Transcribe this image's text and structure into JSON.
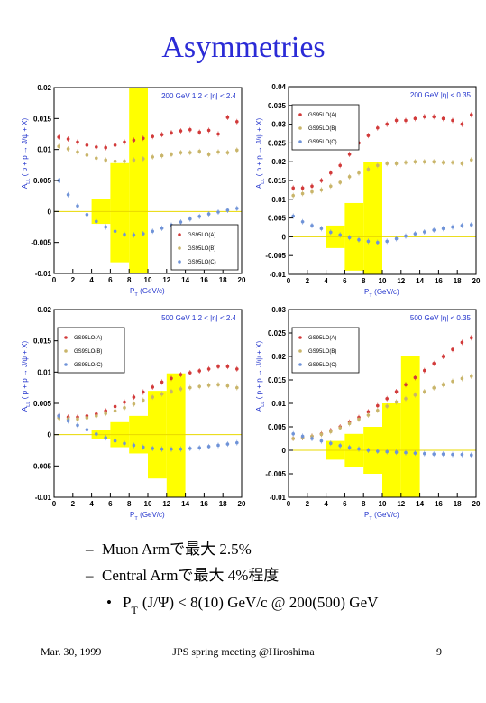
{
  "slide": {
    "title": "Asymmetries",
    "bullets": [
      {
        "marker": "–",
        "parts": [
          "Muon Armで最大 2.5%"
        ]
      },
      {
        "marker": "–",
        "parts": [
          "Central Armで最大 4%程度"
        ]
      },
      {
        "marker": "•",
        "parts": [
          "P",
          "T",
          "(J/Ψ) < 8(10) GeV/c @ 200(500) GeV"
        ]
      }
    ],
    "footer": {
      "date": "Mar. 30, 1999",
      "meeting": "JPS spring meeting @Hiroshima",
      "page": "9"
    }
  },
  "chart_data": [
    {
      "type": "scatter",
      "annotation": "200 GeV   1.2 < |η| < 2.4",
      "legend": "lower right",
      "xlabel_parts": [
        "P",
        "T",
        "(GeV/c)"
      ],
      "ylabel_parts": [
        "A",
        "LL",
        "( p + p → J/ψ + X)"
      ],
      "xlim": [
        0,
        20
      ],
      "xticks": [
        0,
        2,
        4,
        6,
        8,
        10,
        12,
        14,
        16,
        18,
        20
      ],
      "ylim": [
        -0.01,
        0.02
      ],
      "yticks": [
        -0.01,
        -0.005,
        0,
        0.005,
        0.01,
        0.015,
        0.02
      ],
      "x": [
        0.5,
        1.5,
        2.5,
        3.5,
        4.5,
        5.5,
        6.5,
        7.5,
        8.5,
        9.5,
        10.5,
        11.5,
        12.5,
        13.5,
        14.5,
        15.5,
        16.5,
        17.5,
        18.5,
        19.5
      ],
      "series": [
        {
          "name": "GS95LO(A)",
          "color": "#d23a3a",
          "values": [
            0.012,
            0.0117,
            0.0112,
            0.0107,
            0.0104,
            0.0103,
            0.0107,
            0.0112,
            0.0115,
            0.0118,
            0.0121,
            0.0124,
            0.0127,
            0.013,
            0.0132,
            0.0128,
            0.0131,
            0.0125,
            0.0152,
            0.0145
          ]
        },
        {
          "name": "GS95LO(B)",
          "color": "#c9b56a",
          "values": [
            0.0105,
            0.0101,
            0.0096,
            0.0091,
            0.0086,
            0.0083,
            0.0081,
            0.0081,
            0.0083,
            0.0085,
            0.0088,
            0.009,
            0.0092,
            0.0095,
            0.0095,
            0.0097,
            0.0092,
            0.0096,
            0.0095,
            0.0099
          ]
        },
        {
          "name": "GS95LO(C)",
          "color": "#6f93d8",
          "values": [
            0.005,
            0.0027,
            0.0009,
            -0.0005,
            -0.0016,
            -0.0025,
            -0.0032,
            -0.0037,
            -0.0038,
            -0.0036,
            -0.0032,
            -0.0027,
            -0.0022,
            -0.0017,
            -0.0012,
            -0.0008,
            -0.0004,
            -0.0001,
            0.0002,
            0.0005
          ]
        }
      ],
      "boxes": [
        {
          "x": [
            4,
            6
          ],
          "low": -0.002,
          "high": 0.002
        },
        {
          "x": [
            6,
            8
          ],
          "low": -0.0082,
          "high": 0.0078
        },
        {
          "x": [
            8,
            10
          ],
          "low": -0.01,
          "high": 0.02
        }
      ]
    },
    {
      "type": "scatter",
      "annotation": "200 GeV   |η| < 0.35",
      "legend": "upper left",
      "xlabel_parts": [
        "P",
        "T",
        "(GeV/c)"
      ],
      "ylabel_parts": [
        "A",
        "LL",
        "( p + p → J/ψ + X)"
      ],
      "xlim": [
        0,
        20
      ],
      "xticks": [
        0,
        2,
        4,
        6,
        8,
        10,
        12,
        14,
        16,
        18,
        20
      ],
      "ylim": [
        -0.01,
        0.04
      ],
      "yticks": [
        -0.01,
        -0.005,
        0,
        0.005,
        0.01,
        0.015,
        0.02,
        0.025,
        0.03,
        0.035,
        0.04
      ],
      "x": [
        0.5,
        1.5,
        2.5,
        3.5,
        4.5,
        5.5,
        6.5,
        7.5,
        8.5,
        9.5,
        10.5,
        11.5,
        12.5,
        13.5,
        14.5,
        15.5,
        16.5,
        17.5,
        18.5,
        19.5
      ],
      "series": [
        {
          "name": "GS95LO(A)",
          "color": "#d23a3a",
          "values": [
            0.013,
            0.013,
            0.0135,
            0.015,
            0.017,
            0.019,
            0.022,
            0.025,
            0.027,
            0.029,
            0.03,
            0.031,
            0.031,
            0.0315,
            0.032,
            0.032,
            0.0315,
            0.031,
            0.03,
            0.0325
          ]
        },
        {
          "name": "GS95LO(B)",
          "color": "#c9b56a",
          "values": [
            0.011,
            0.0115,
            0.012,
            0.0125,
            0.0135,
            0.0145,
            0.016,
            0.017,
            0.018,
            0.019,
            0.0195,
            0.0195,
            0.0198,
            0.02,
            0.02,
            0.02,
            0.0198,
            0.0198,
            0.0195,
            0.0205
          ]
        },
        {
          "name": "GS95LO(C)",
          "color": "#6f93d8",
          "values": [
            0.0055,
            0.004,
            0.003,
            0.0022,
            0.0012,
            0.0005,
            -0.0002,
            -0.0008,
            -0.0012,
            -0.0015,
            -0.0012,
            -0.0005,
            0.0002,
            0.0008,
            0.0013,
            0.0018,
            0.0022,
            0.0026,
            0.003,
            0.0032
          ]
        }
      ],
      "boxes": [
        {
          "x": [
            4,
            6
          ],
          "low": -0.003,
          "high": 0.003
        },
        {
          "x": [
            6,
            8
          ],
          "low": -0.009,
          "high": 0.009
        },
        {
          "x": [
            8,
            10
          ],
          "low": -0.01,
          "high": 0.02
        }
      ]
    },
    {
      "type": "scatter",
      "annotation": "500 GeV   1.2 < |η| < 2.4",
      "legend": "upper left",
      "xlabel_parts": [
        "P",
        "T",
        "(GeV/c)"
      ],
      "ylabel_parts": [
        "A",
        "LL",
        "( p + p → J/ψ + X)"
      ],
      "xlim": [
        0,
        20
      ],
      "xticks": [
        0,
        2,
        4,
        6,
        8,
        10,
        12,
        14,
        16,
        18,
        20
      ],
      "ylim": [
        -0.01,
        0.02
      ],
      "yticks": [
        -0.01,
        -0.005,
        0,
        0.005,
        0.01,
        0.015,
        0.02
      ],
      "x": [
        0.5,
        1.5,
        2.5,
        3.5,
        4.5,
        5.5,
        6.5,
        7.5,
        8.5,
        9.5,
        10.5,
        11.5,
        12.5,
        13.5,
        14.5,
        15.5,
        16.5,
        17.5,
        18.5,
        19.5
      ],
      "series": [
        {
          "name": "GS95LO(A)",
          "color": "#d23a3a",
          "values": [
            0.003,
            0.0028,
            0.0028,
            0.003,
            0.0033,
            0.0038,
            0.0045,
            0.0052,
            0.006,
            0.0068,
            0.0076,
            0.0084,
            0.009,
            0.0096,
            0.0099,
            0.0102,
            0.0105,
            0.0109,
            0.0109,
            0.0105
          ]
        },
        {
          "name": "GS95LO(B)",
          "color": "#c9b56a",
          "values": [
            0.0027,
            0.0025,
            0.0025,
            0.0027,
            0.003,
            0.0034,
            0.0038,
            0.0043,
            0.0049,
            0.0055,
            0.006,
            0.0065,
            0.0069,
            0.0073,
            0.0075,
            0.0077,
            0.0079,
            0.008,
            0.0078,
            0.0075
          ]
        },
        {
          "name": "GS95LO(C)",
          "color": "#6f93d8",
          "values": [
            0.003,
            0.0022,
            0.0015,
            0.0008,
            0.0001,
            -0.0005,
            -0.001,
            -0.0014,
            -0.0017,
            -0.002,
            -0.0022,
            -0.0023,
            -0.0023,
            -0.0023,
            -0.0022,
            -0.0021,
            -0.0019,
            -0.0017,
            -0.0015,
            -0.0013
          ]
        }
      ],
      "boxes": [
        {
          "x": [
            4,
            6
          ],
          "low": -0.0007,
          "high": 0.0007
        },
        {
          "x": [
            6,
            8
          ],
          "low": -0.002,
          "high": 0.002
        },
        {
          "x": [
            8,
            10
          ],
          "low": -0.003,
          "high": 0.003
        },
        {
          "x": [
            10,
            12
          ],
          "low": -0.007,
          "high": 0.007
        },
        {
          "x": [
            12,
            14
          ],
          "low": -0.01,
          "high": 0.0098
        }
      ]
    },
    {
      "type": "scatter",
      "annotation": "500 GeV   |η| < 0.35",
      "legend": "upper left",
      "xlabel_parts": [
        "P",
        "T",
        "(GeV/c)"
      ],
      "ylabel_parts": [
        "A",
        "LL",
        "( p + p → J/ψ + X)"
      ],
      "xlim": [
        0,
        20
      ],
      "xticks": [
        0,
        2,
        4,
        6,
        8,
        10,
        12,
        14,
        16,
        18,
        20
      ],
      "ylim": [
        -0.01,
        0.03
      ],
      "yticks": [
        -0.01,
        -0.005,
        0,
        0.005,
        0.01,
        0.015,
        0.02,
        0.025,
        0.03
      ],
      "x": [
        0.5,
        1.5,
        2.5,
        3.5,
        4.5,
        5.5,
        6.5,
        7.5,
        8.5,
        9.5,
        10.5,
        11.5,
        12.5,
        13.5,
        14.5,
        15.5,
        16.5,
        17.5,
        18.5,
        19.5
      ],
      "series": [
        {
          "name": "GS95LO(A)",
          "color": "#d23a3a",
          "values": [
            0.0025,
            0.0027,
            0.003,
            0.0035,
            0.0042,
            0.005,
            0.006,
            0.007,
            0.0082,
            0.0095,
            0.011,
            0.0125,
            0.014,
            0.0155,
            0.017,
            0.0185,
            0.02,
            0.0215,
            0.023,
            0.024
          ]
        },
        {
          "name": "GS95LO(B)",
          "color": "#c9b56a",
          "values": [
            0.0025,
            0.0027,
            0.003,
            0.0034,
            0.004,
            0.0048,
            0.0057,
            0.0066,
            0.0075,
            0.0085,
            0.0094,
            0.0103,
            0.011,
            0.0118,
            0.0125,
            0.0133,
            0.014,
            0.0147,
            0.0153,
            0.0158
          ]
        },
        {
          "name": "GS95LO(C)",
          "color": "#6f93d8",
          "values": [
            0.0035,
            0.003,
            0.0025,
            0.002,
            0.0015,
            0.001,
            0.0006,
            0.0003,
            0,
            -0.0002,
            -0.0003,
            -0.0004,
            -0.0005,
            -0.0006,
            -0.0007,
            -0.0008,
            -0.0008,
            -0.0009,
            -0.0009,
            -0.001
          ]
        }
      ],
      "boxes": [
        {
          "x": [
            4,
            6
          ],
          "low": -0.002,
          "high": 0.002
        },
        {
          "x": [
            6,
            8
          ],
          "low": -0.0035,
          "high": 0.0035
        },
        {
          "x": [
            8,
            10
          ],
          "low": -0.005,
          "high": 0.005
        },
        {
          "x": [
            10,
            12
          ],
          "low": -0.01,
          "high": 0.01
        },
        {
          "x": [
            12,
            14
          ],
          "low": -0.01,
          "high": 0.02
        }
      ]
    }
  ]
}
